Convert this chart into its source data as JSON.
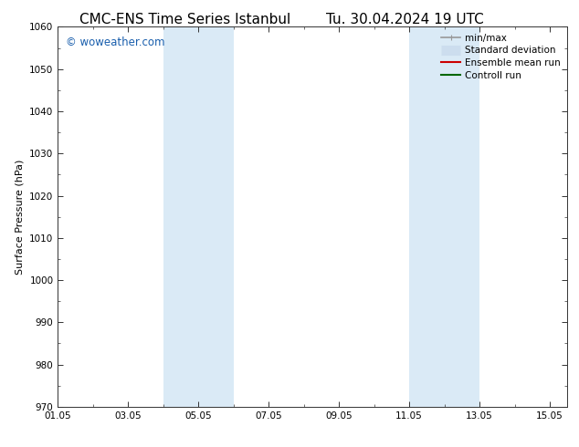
{
  "title_left": "CMC-ENS Time Series Istanbul",
  "title_right": "Tu. 30.04.2024 19 UTC",
  "ylabel": "Surface Pressure (hPa)",
  "xlim": [
    1.0,
    15.5
  ],
  "ylim": [
    970,
    1060
  ],
  "yticks": [
    970,
    980,
    990,
    1000,
    1010,
    1020,
    1030,
    1040,
    1050,
    1060
  ],
  "xtick_labels": [
    "01.05",
    "03.05",
    "05.05",
    "07.05",
    "09.05",
    "11.05",
    "13.05",
    "15.05"
  ],
  "xtick_positions": [
    1.0,
    3.0,
    5.0,
    7.0,
    9.0,
    11.0,
    13.0,
    15.0
  ],
  "shaded_bands": [
    {
      "xmin": 4.0,
      "xmax": 6.0
    },
    {
      "xmin": 11.0,
      "xmax": 13.0
    }
  ],
  "shade_color": "#daeaf6",
  "watermark_text": "© woweather.com",
  "watermark_color": "#1a5fad",
  "legend_items": [
    {
      "label": "min/max",
      "color": "#999999",
      "lw": 1.2,
      "style": "minmax"
    },
    {
      "label": "Standard deviation",
      "color": "#ccddee",
      "lw": 8,
      "style": "band"
    },
    {
      "label": "Ensemble mean run",
      "color": "#cc0000",
      "lw": 1.5,
      "style": "line"
    },
    {
      "label": "Controll run",
      "color": "#006600",
      "lw": 1.5,
      "style": "line"
    }
  ],
  "background_color": "#ffffff",
  "title_fontsize": 11,
  "axis_fontsize": 8,
  "tick_fontsize": 7.5,
  "legend_fontsize": 7.5
}
